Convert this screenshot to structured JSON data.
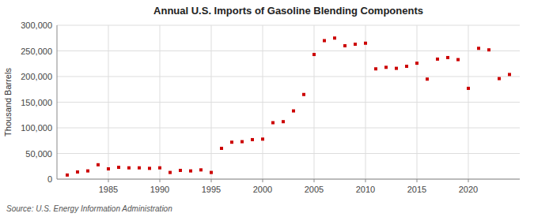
{
  "chart_data": {
    "type": "scatter",
    "title": "Annual U.S. Imports of Gasoline Blending Components",
    "ylabel": "Thousand Barrels",
    "source": "Source: U.S. Energy Information Administration",
    "color": "#cc0000",
    "marker": "square",
    "grid": true,
    "x": [
      1981,
      1982,
      1983,
      1984,
      1985,
      1986,
      1987,
      1988,
      1989,
      1990,
      1991,
      1992,
      1993,
      1994,
      1995,
      1996,
      1997,
      1998,
      1999,
      2000,
      2001,
      2002,
      2003,
      2004,
      2005,
      2006,
      2007,
      2008,
      2009,
      2010,
      2011,
      2012,
      2013,
      2014,
      2015,
      2016,
      2017,
      2018,
      2019,
      2020,
      2021,
      2022,
      2023,
      2024
    ],
    "values": [
      8000,
      14000,
      16000,
      28000,
      20000,
      23000,
      22000,
      22000,
      21000,
      22000,
      13000,
      17000,
      16000,
      18000,
      13000,
      60000,
      72000,
      73000,
      77000,
      78000,
      110000,
      112000,
      133000,
      165000,
      243000,
      270000,
      275000,
      260000,
      263000,
      265000,
      215000,
      218000,
      216000,
      220000,
      226000,
      195000,
      234000,
      237000,
      233000,
      177000,
      255000,
      252000,
      196000,
      204000
    ],
    "xlim": [
      1980,
      2025
    ],
    "xticks": [
      1985,
      1990,
      1995,
      2000,
      2005,
      2010,
      2015,
      2020
    ],
    "ylim": [
      0,
      300000
    ],
    "yticks": [
      0,
      {
        "value": 50000,
        "label": "50,000"
      },
      {
        "value": 100000,
        "label": "100,000"
      },
      {
        "value": 150000,
        "label": "150,000"
      },
      {
        "value": 200000,
        "label": "200,000"
      },
      {
        "value": 250000,
        "label": "250,000"
      },
      {
        "value": 300000,
        "label": "300,000"
      }
    ]
  }
}
